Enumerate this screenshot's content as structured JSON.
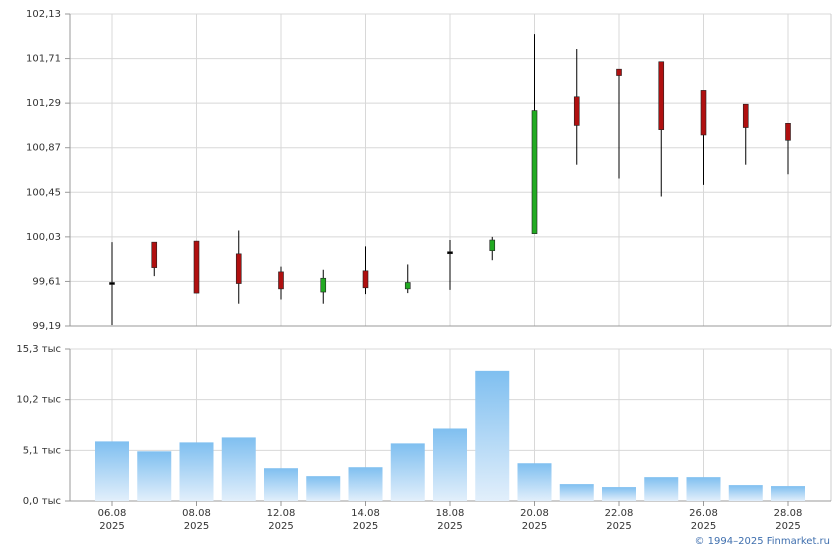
{
  "chart_data": [
    {
      "type": "candlestick",
      "open": [
        99.6,
        99.98,
        99.99,
        99.87,
        99.7,
        99.51,
        99.71,
        99.54,
        99.89,
        99.9,
        100.06,
        101.35,
        101.61,
        101.68,
        101.41,
        101.28,
        101.1
      ],
      "high": [
        99.98,
        99.98,
        99.99,
        100.09,
        99.75,
        99.72,
        99.94,
        99.77,
        100.0,
        100.03,
        101.94,
        101.8,
        101.61,
        101.68,
        101.41,
        101.28,
        101.1
      ],
      "low": [
        99.2,
        99.66,
        99.5,
        99.4,
        99.44,
        99.4,
        99.49,
        99.5,
        99.53,
        99.81,
        100.06,
        100.71,
        100.58,
        100.41,
        100.52,
        100.71,
        100.62
      ],
      "close": [
        99.6,
        99.74,
        99.5,
        99.59,
        99.54,
        99.64,
        99.55,
        99.6,
        99.89,
        100.0,
        101.22,
        101.08,
        101.55,
        101.04,
        100.99,
        101.06,
        100.94
      ],
      "up_color": "#22aa22",
      "down_color": "#b01010",
      "flat_color": "#000000",
      "ylim": [
        99.19,
        102.13
      ],
      "yticks": [
        {
          "value": 99.19,
          "label": "99,19"
        },
        {
          "value": 99.61,
          "label": "99,61"
        },
        {
          "value": 100.03,
          "label": "100,03"
        },
        {
          "value": 100.45,
          "label": "100,45"
        },
        {
          "value": 100.87,
          "label": "100,87"
        },
        {
          "value": 101.29,
          "label": "101,29"
        },
        {
          "value": 101.71,
          "label": "101,71"
        },
        {
          "value": 102.13,
          "label": "102,13"
        }
      ],
      "grid": true
    },
    {
      "type": "bar",
      "categories": [
        "06.08\n2025",
        null,
        "08.08\n2025",
        null,
        "12.08\n2025",
        null,
        "14.08\n2025",
        null,
        "18.08\n2025",
        null,
        "20.08\n2025",
        null,
        "22.08\n2025",
        null,
        "26.08\n2025",
        null,
        "28.08\n2025"
      ],
      "values": [
        6000,
        5000,
        5900,
        6400,
        3300,
        2500,
        3400,
        5800,
        7300,
        13100,
        3800,
        1700,
        1400,
        2400,
        2400,
        1600,
        1500
      ],
      "color": "#7fbff0",
      "ylim": [
        0,
        15300
      ],
      "yticks": [
        {
          "value": 0,
          "label": "0,0 тыс"
        },
        {
          "value": 5100,
          "label": "5,1 тыс"
        },
        {
          "value": 10200,
          "label": "10,2 тыс"
        },
        {
          "value": 15300,
          "label": "15,3 тыс"
        }
      ],
      "grid": true
    }
  ],
  "footer": "© 1994–2025 Finmarket.ru"
}
